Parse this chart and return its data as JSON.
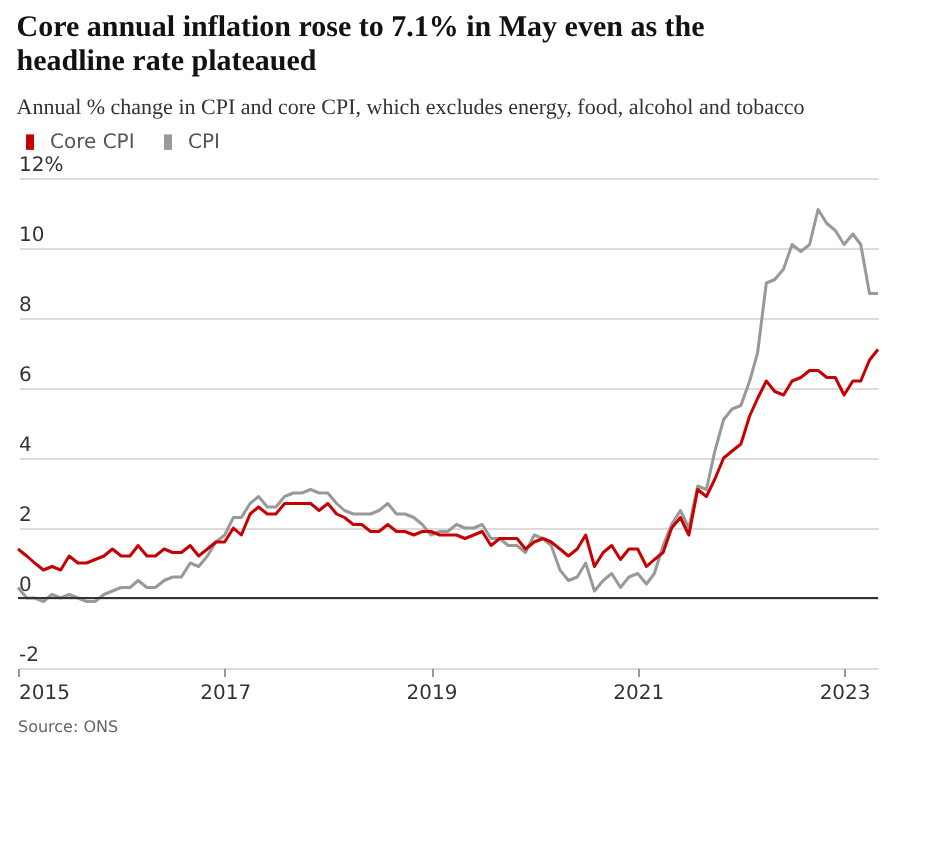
{
  "chart_data": {
    "type": "line",
    "title": "Core annual inflation rose to 7.1% in May even as the headline rate plateaued",
    "subtitle": "Annual % change in CPI and core CPI, which excludes energy, food, alcohol and tobacco",
    "annotations": [
      "Source: ONS"
    ],
    "x": [
      "2015-01",
      "2015-02",
      "2015-03",
      "2015-04",
      "2015-05",
      "2015-06",
      "2015-07",
      "2015-08",
      "2015-09",
      "2015-10",
      "2015-11",
      "2015-12",
      "2016-01",
      "2016-02",
      "2016-03",
      "2016-04",
      "2016-05",
      "2016-06",
      "2016-07",
      "2016-08",
      "2016-09",
      "2016-10",
      "2016-11",
      "2016-12",
      "2017-01",
      "2017-02",
      "2017-03",
      "2017-04",
      "2017-05",
      "2017-06",
      "2017-07",
      "2017-08",
      "2017-09",
      "2017-10",
      "2017-11",
      "2017-12",
      "2018-01",
      "2018-02",
      "2018-03",
      "2018-04",
      "2018-05",
      "2018-06",
      "2018-07",
      "2018-08",
      "2018-09",
      "2018-10",
      "2018-11",
      "2018-12",
      "2019-01",
      "2019-02",
      "2019-03",
      "2019-04",
      "2019-05",
      "2019-06",
      "2019-07",
      "2019-08",
      "2019-09",
      "2019-10",
      "2019-11",
      "2019-12",
      "2020-01",
      "2020-02",
      "2020-03",
      "2020-04",
      "2020-05",
      "2020-06",
      "2020-07",
      "2020-08",
      "2020-09",
      "2020-10",
      "2020-11",
      "2020-12",
      "2021-01",
      "2021-02",
      "2021-03",
      "2021-04",
      "2021-05",
      "2021-06",
      "2021-07",
      "2021-08",
      "2021-09",
      "2021-10",
      "2021-11",
      "2021-12",
      "2022-01",
      "2022-02",
      "2022-03",
      "2022-04",
      "2022-05",
      "2022-06",
      "2022-07",
      "2022-08",
      "2022-09",
      "2022-10",
      "2022-11",
      "2022-12",
      "2023-01",
      "2023-02",
      "2023-03",
      "2023-04",
      "2023-05"
    ],
    "series": [
      {
        "name": "CPI",
        "color": "#999999",
        "values": [
          0.3,
          0.0,
          0.0,
          -0.1,
          0.1,
          0.0,
          0.1,
          0.0,
          -0.1,
          -0.1,
          0.1,
          0.2,
          0.3,
          0.3,
          0.5,
          0.3,
          0.3,
          0.5,
          0.6,
          0.6,
          1.0,
          0.9,
          1.2,
          1.6,
          1.8,
          2.3,
          2.3,
          2.7,
          2.9,
          2.6,
          2.6,
          2.9,
          3.0,
          3.0,
          3.1,
          3.0,
          3.0,
          2.7,
          2.5,
          2.4,
          2.4,
          2.4,
          2.5,
          2.7,
          2.4,
          2.4,
          2.3,
          2.1,
          1.8,
          1.9,
          1.9,
          2.1,
          2.0,
          2.0,
          2.1,
          1.7,
          1.7,
          1.5,
          1.5,
          1.3,
          1.8,
          1.7,
          1.5,
          0.8,
          0.5,
          0.6,
          1.0,
          0.2,
          0.5,
          0.7,
          0.3,
          0.6,
          0.7,
          0.4,
          0.7,
          1.5,
          2.1,
          2.5,
          2.0,
          3.2,
          3.1,
          4.2,
          5.1,
          5.4,
          5.5,
          6.2,
          7.0,
          9.0,
          9.1,
          9.4,
          10.1,
          9.9,
          10.1,
          11.1,
          10.7,
          10.5,
          10.1,
          10.4,
          10.1,
          8.7,
          8.7
        ]
      },
      {
        "name": "Core CPI",
        "color": "#c70000",
        "values": [
          1.4,
          1.2,
          1.0,
          0.8,
          0.9,
          0.8,
          1.2,
          1.0,
          1.0,
          1.1,
          1.2,
          1.4,
          1.2,
          1.2,
          1.5,
          1.2,
          1.2,
          1.4,
          1.3,
          1.3,
          1.5,
          1.2,
          1.4,
          1.6,
          1.6,
          2.0,
          1.8,
          2.4,
          2.6,
          2.4,
          2.4,
          2.7,
          2.7,
          2.7,
          2.7,
          2.5,
          2.7,
          2.4,
          2.3,
          2.1,
          2.1,
          1.9,
          1.9,
          2.1,
          1.9,
          1.9,
          1.8,
          1.9,
          1.9,
          1.8,
          1.8,
          1.8,
          1.7,
          1.8,
          1.9,
          1.5,
          1.7,
          1.7,
          1.7,
          1.4,
          1.6,
          1.7,
          1.6,
          1.4,
          1.2,
          1.4,
          1.8,
          0.9,
          1.3,
          1.5,
          1.1,
          1.4,
          1.4,
          0.9,
          1.1,
          1.3,
          2.0,
          2.3,
          1.8,
          3.1,
          2.9,
          3.4,
          4.0,
          4.2,
          4.4,
          5.2,
          5.7,
          6.2,
          5.9,
          5.8,
          6.2,
          6.3,
          6.5,
          6.5,
          6.3,
          6.3,
          5.8,
          6.2,
          6.2,
          6.8,
          7.1
        ]
      }
    ],
    "legend": "top left",
    "xlim": [
      "2015-01",
      "2023-05"
    ],
    "xticks": [
      {
        "value": "2015-01",
        "label": "2015"
      },
      {
        "value": "2017-01",
        "label": "2017"
      },
      {
        "value": "2019-01",
        "label": "2019"
      },
      {
        "value": "2021-01",
        "label": "2021"
      },
      {
        "value": "2023-01",
        "label": "2023"
      }
    ],
    "ylim": [
      -2,
      12
    ],
    "yticks": [
      -2,
      0,
      2,
      4,
      6,
      8,
      10,
      {
        "value": 12,
        "label": "12%"
      }
    ],
    "grid": "y",
    "ref_lines": [
      {
        "axis": "y",
        "value": 0,
        "color": "#333333"
      }
    ]
  }
}
